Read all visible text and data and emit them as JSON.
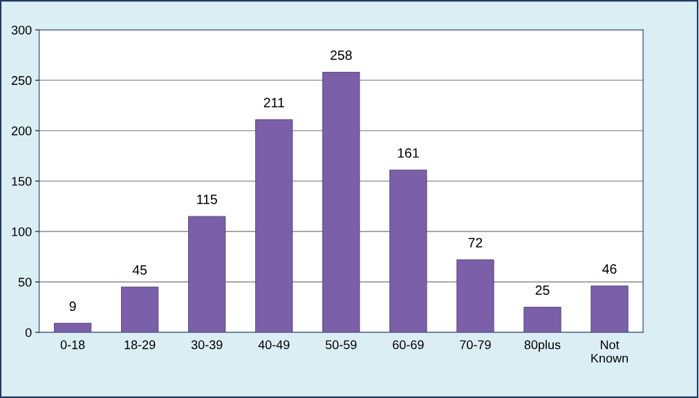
{
  "chart_data": {
    "type": "bar",
    "categories": [
      "0-18",
      "18-29",
      "30-39",
      "40-49",
      "50-59",
      "60-69",
      "70-79",
      "80plus",
      "Not\nKnown"
    ],
    "values": [
      9,
      45,
      115,
      211,
      258,
      161,
      72,
      25,
      46
    ],
    "color": "#7b5fa8",
    "ylim": [
      0,
      300
    ],
    "yticks": [
      0,
      50,
      100,
      150,
      200,
      250,
      300
    ],
    "grid": "y",
    "data_labels": true,
    "legend": false
  }
}
